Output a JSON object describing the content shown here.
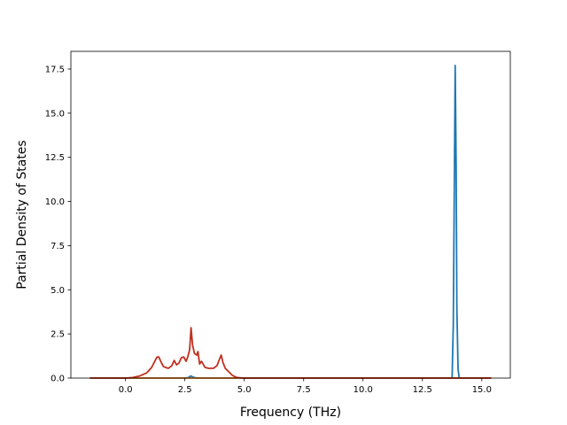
{
  "chart_data": {
    "type": "line",
    "title": "",
    "xlabel": "Frequency (THz)",
    "ylabel": "Partial Density of States",
    "xlim": [
      -2.3,
      16.2
    ],
    "ylim": [
      0,
      18.5
    ],
    "xticks": [
      0.0,
      2.5,
      5.0,
      7.5,
      10.0,
      12.5,
      15.0
    ],
    "xtick_labels": [
      "0.0",
      "2.5",
      "5.0",
      "7.5",
      "10.0",
      "12.5",
      "15.0"
    ],
    "yticks": [
      0.0,
      2.5,
      5.0,
      7.5,
      10.0,
      12.5,
      15.0,
      17.5
    ],
    "ytick_labels": [
      "0.0",
      "2.5",
      "5.0",
      "7.5",
      "10.0",
      "12.5",
      "15.0",
      "17.5"
    ],
    "grid": false,
    "legend": "none",
    "series": [
      {
        "color": "#1f77b4",
        "x": [
          -1.5,
          2.5,
          2.65,
          2.75,
          2.85,
          3.0,
          13.75,
          13.8,
          13.85,
          13.88,
          13.92,
          13.95,
          14.0,
          14.05,
          15.4
        ],
        "y": [
          0,
          0,
          0.03,
          0.12,
          0.05,
          0,
          0,
          3.0,
          12.0,
          17.7,
          12.0,
          4.0,
          0.5,
          0,
          0
        ]
      },
      {
        "color": "#ff7f0e",
        "x": [
          -1.5,
          15.4
        ],
        "y": [
          0,
          0
        ]
      },
      {
        "color": "#c0301f",
        "x": [
          -1.5,
          0.0,
          0.3,
          0.6,
          0.9,
          1.1,
          1.25,
          1.32,
          1.4,
          1.5,
          1.6,
          1.8,
          1.95,
          2.05,
          2.15,
          2.25,
          2.35,
          2.45,
          2.55,
          2.62,
          2.7,
          2.76,
          2.82,
          2.9,
          3.0,
          3.05,
          3.12,
          3.2,
          3.35,
          3.5,
          3.7,
          3.85,
          3.95,
          4.03,
          4.1,
          4.2,
          4.35,
          4.5,
          4.7,
          5.0,
          15.4
        ],
        "y": [
          0,
          0,
          0.03,
          0.12,
          0.3,
          0.6,
          1.0,
          1.18,
          1.2,
          0.9,
          0.65,
          0.55,
          0.7,
          1.0,
          0.75,
          0.85,
          1.15,
          1.2,
          0.95,
          1.2,
          1.6,
          2.85,
          1.9,
          1.4,
          1.3,
          1.5,
          0.8,
          0.95,
          0.6,
          0.55,
          0.55,
          0.7,
          1.05,
          1.3,
          0.9,
          0.55,
          0.35,
          0.15,
          0.03,
          0,
          0
        ]
      }
    ]
  }
}
